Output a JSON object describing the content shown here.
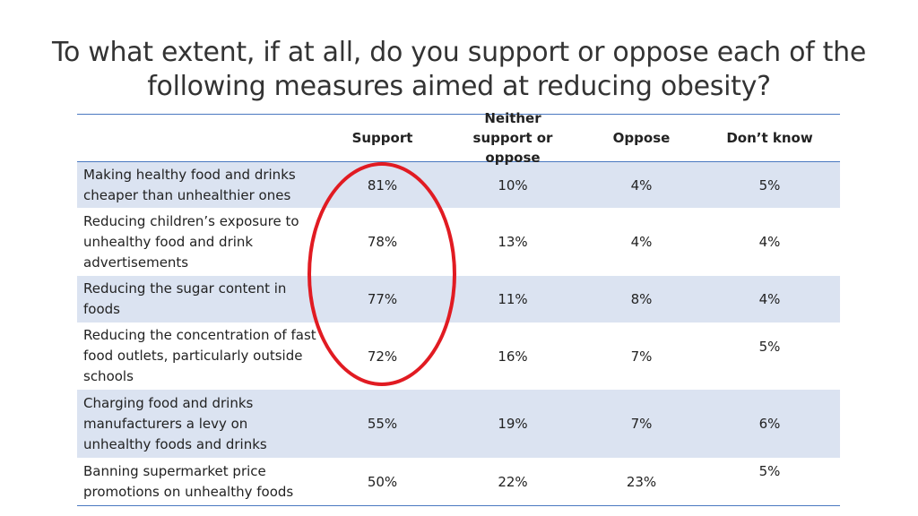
{
  "title": "To what extent, if at all, do you support or oppose each of the following measures aimed at reducing obesity?",
  "headers": {
    "measure": "",
    "support": "Support",
    "neither": "Neither support or oppose",
    "oppose": "Oppose",
    "dont_know": "Don’t know"
  },
  "rows": [
    {
      "measure": "Making healthy food and drinks cheaper than unhealthier ones",
      "support": "81%",
      "neither": "10%",
      "oppose": "4%",
      "dont_know": "5%"
    },
    {
      "measure": "Reducing children’s exposure to unhealthy food and drink advertisements",
      "support": "78%",
      "neither": "13%",
      "oppose": "4%",
      "dont_know": "4%"
    },
    {
      "measure": "Reducing the sugar content in foods",
      "support": "77%",
      "neither": "11%",
      "oppose": "8%",
      "dont_know": "4%"
    },
    {
      "measure": "Reducing the concentration of fast food outlets, particularly outside schools",
      "support": "72%",
      "neither": "16%",
      "oppose": "7%",
      "dont_know": "5%"
    },
    {
      "measure": "Charging food and drinks manufacturers a levy on unhealthy foods and drinks",
      "support": "55%",
      "neither": "19%",
      "oppose": "7%",
      "dont_know": "6%"
    },
    {
      "measure": "Banning supermarket price promotions on unhealthy foods",
      "support": "50%",
      "neither": "22%",
      "oppose": "23%",
      "dont_know": "5%"
    }
  ],
  "colors": {
    "accent": "#4a78c0",
    "row_shade": "#dbe3f1",
    "highlight": "#e11b22"
  }
}
